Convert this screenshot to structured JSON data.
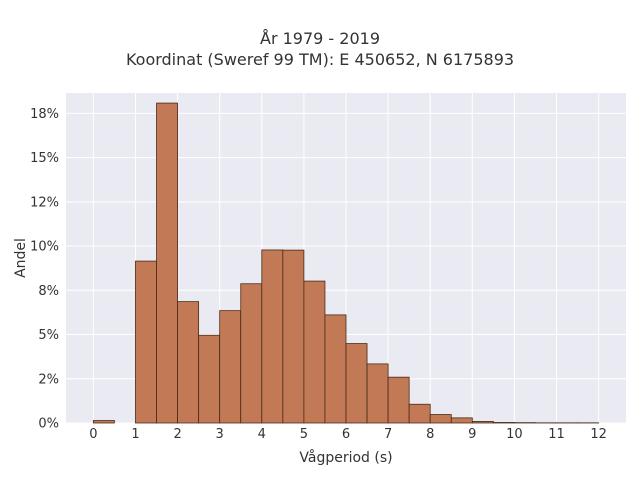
{
  "chart_data": {
    "type": "bar",
    "title_line1": "År 1979 - 2019",
    "title_line2": "Koordinat (Sweref 99 TM): E 450652, N 6175893",
    "xlabel": "Vågperiod (s)",
    "ylabel": "Andel",
    "xlim": [
      -0.65,
      12.65
    ],
    "ylim": [
      0,
      0.1865
    ],
    "x_ticks": [
      0,
      1,
      2,
      3,
      4,
      5,
      6,
      7,
      8,
      9,
      10,
      11,
      12
    ],
    "x_tick_labels": [
      "0",
      "1",
      "2",
      "3",
      "4",
      "5",
      "6",
      "7",
      "8",
      "9",
      "10",
      "11",
      "12"
    ],
    "y_ticks": [
      0,
      0.025,
      0.05,
      0.075,
      0.1,
      0.125,
      0.15,
      0.175
    ],
    "y_tick_labels": [
      "0%",
      "2%",
      "5%",
      "8%",
      "10%",
      "12%",
      "15%",
      "18%"
    ],
    "bin_width": 0.5,
    "bins": [
      {
        "x0": 0.0,
        "value": 0.0014
      },
      {
        "x0": 0.5,
        "value": 0.0
      },
      {
        "x0": 1.0,
        "value": 0.0915
      },
      {
        "x0": 1.5,
        "value": 0.1808
      },
      {
        "x0": 2.0,
        "value": 0.0686
      },
      {
        "x0": 2.5,
        "value": 0.0496
      },
      {
        "x0": 3.0,
        "value": 0.0635
      },
      {
        "x0": 3.5,
        "value": 0.0787
      },
      {
        "x0": 4.0,
        "value": 0.0978
      },
      {
        "x0": 4.5,
        "value": 0.0977
      },
      {
        "x0": 5.0,
        "value": 0.0802
      },
      {
        "x0": 5.5,
        "value": 0.0611
      },
      {
        "x0": 6.0,
        "value": 0.0449
      },
      {
        "x0": 6.5,
        "value": 0.0334
      },
      {
        "x0": 7.0,
        "value": 0.0259
      },
      {
        "x0": 7.5,
        "value": 0.0106
      },
      {
        "x0": 8.0,
        "value": 0.0048
      },
      {
        "x0": 8.5,
        "value": 0.0029
      },
      {
        "x0": 9.0,
        "value": 0.0009
      },
      {
        "x0": 9.5,
        "value": 0.0003
      },
      {
        "x0": 10.0,
        "value": 0.0002
      },
      {
        "x0": 10.5,
        "value": 0.0001
      },
      {
        "x0": 11.0,
        "value": 0.0001
      },
      {
        "x0": 11.5,
        "value": 0.0001
      }
    ],
    "grid": true,
    "bar_color": "#c17a55",
    "bar_edge_color": "#4a2a1a",
    "plot_background": "#eaeaf2",
    "grid_color": "#ffffff"
  }
}
